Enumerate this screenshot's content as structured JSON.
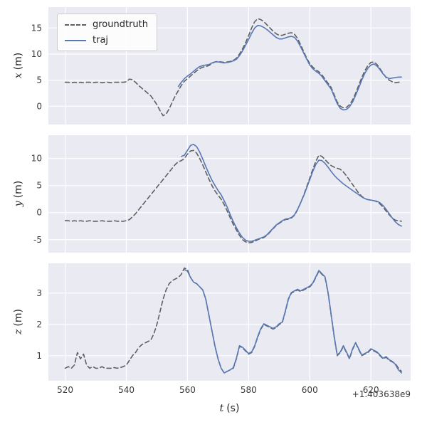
{
  "figure": {
    "bg": "#ffffff",
    "axes_bg": "#eaeaf2",
    "grid_color": "#ffffff",
    "text_color": "#3b3b3b"
  },
  "legend": {
    "position": "upper left",
    "items": [
      {
        "label": "groundtruth",
        "style": "dashed",
        "color": "#5f5f5f"
      },
      {
        "label": "traj",
        "style": "solid",
        "color": "#5878b4"
      }
    ]
  },
  "x_axis": {
    "label_var": "t",
    "label_unit": "(s)",
    "offset": "+1.403638e9",
    "ticks": [
      520,
      540,
      560,
      580,
      600,
      620
    ],
    "lim": [
      514.5,
      633
    ]
  },
  "chart_data": [
    {
      "type": "line",
      "ylabel_var": "x",
      "ylabel_unit": "(m)",
      "yticks": [
        0,
        5,
        10,
        15
      ],
      "ylim": [
        -3.5,
        19.0
      ],
      "grid": true,
      "series": [
        {
          "name": "groundtruth",
          "color": "#5f5f5f",
          "dashed": true,
          "t0": 520,
          "dt": 1,
          "v": [
            4.6,
            4.6,
            4.5,
            4.6,
            4.5,
            4.6,
            4.5,
            4.6,
            4.6,
            4.5,
            4.6,
            4.6,
            4.5,
            4.6,
            4.6,
            4.5,
            4.6,
            4.6,
            4.6,
            4.6,
            4.7,
            5.2,
            5.1,
            4.6,
            4.0,
            3.5,
            3.0,
            2.5,
            2.0,
            1.2,
            0.3,
            -0.8,
            -1.8,
            -1.5,
            -0.5,
            0.8,
            2.0,
            3.0,
            4.0,
            4.8,
            5.3,
            5.8,
            6.3,
            6.8,
            7.2,
            7.5,
            7.6,
            7.8,
            8.2,
            8.5,
            8.6,
            8.5,
            8.4,
            8.5,
            8.6,
            8.8,
            9.2,
            10.0,
            11.0,
            12.2,
            13.5,
            15.0,
            16.2,
            16.8,
            16.6,
            16.2,
            15.6,
            15.0,
            14.4,
            13.9,
            13.6,
            13.6,
            13.8,
            14.0,
            14.1,
            13.8,
            13.0,
            11.8,
            10.5,
            9.2,
            8.2,
            7.5,
            7.0,
            6.6,
            6.0,
            5.2,
            4.4,
            3.6,
            2.2,
            0.8,
            0.0,
            -0.3,
            -0.2,
            0.3,
            1.2,
            2.5,
            4.0,
            5.5,
            6.8,
            7.8,
            8.4,
            8.5,
            8.0,
            7.2,
            6.3,
            5.5,
            5.0,
            4.7,
            4.5,
            4.6,
            4.7
          ]
        },
        {
          "name": "traj",
          "color": "#5878b4",
          "dashed": false,
          "t0": 557,
          "dt": 1,
          "v": [
            3.8,
            4.6,
            5.3,
            5.8,
            6.2,
            6.7,
            7.2,
            7.6,
            7.8,
            7.9,
            8.0,
            8.3,
            8.5,
            8.5,
            8.4,
            8.3,
            8.4,
            8.5,
            8.7,
            9.0,
            9.7,
            10.6,
            11.7,
            12.8,
            14.0,
            15.0,
            15.5,
            15.4,
            15.1,
            14.7,
            14.2,
            13.7,
            13.2,
            12.9,
            12.9,
            13.1,
            13.3,
            13.4,
            13.2,
            12.5,
            11.4,
            10.2,
            9.0,
            7.9,
            7.2,
            6.7,
            6.3,
            5.7,
            4.9,
            4.1,
            3.3,
            1.9,
            0.5,
            -0.4,
            -0.7,
            -0.6,
            -0.1,
            0.8,
            2.1,
            3.5,
            5.0,
            6.3,
            7.3,
            7.9,
            8.1,
            7.7,
            7.0,
            6.2,
            5.6,
            5.3,
            5.4,
            5.5,
            5.6,
            5.6
          ]
        }
      ]
    },
    {
      "type": "line",
      "ylabel_var": "y",
      "ylabel_unit": "(m)",
      "yticks": [
        -5,
        0,
        5,
        10
      ],
      "ylim": [
        -7.4,
        14.3
      ],
      "grid": true,
      "series": [
        {
          "name": "groundtruth",
          "color": "#5f5f5f",
          "dashed": true,
          "t0": 520,
          "dt": 1,
          "v": [
            -1.5,
            -1.5,
            -1.6,
            -1.5,
            -1.6,
            -1.5,
            -1.6,
            -1.6,
            -1.5,
            -1.6,
            -1.6,
            -1.6,
            -1.5,
            -1.6,
            -1.6,
            -1.6,
            -1.5,
            -1.6,
            -1.6,
            -1.6,
            -1.5,
            -1.3,
            -0.8,
            -0.2,
            0.5,
            1.2,
            1.9,
            2.6,
            3.3,
            4.0,
            4.7,
            5.4,
            6.1,
            6.8,
            7.5,
            8.2,
            8.9,
            9.4,
            9.6,
            10.0,
            10.8,
            11.4,
            11.5,
            11.0,
            10.0,
            8.8,
            7.5,
            6.2,
            5.0,
            4.0,
            3.2,
            2.5,
            1.5,
            0.3,
            -1.0,
            -2.2,
            -3.2,
            -4.2,
            -5.0,
            -5.4,
            -5.6,
            -5.5,
            -5.3,
            -5.0,
            -4.8,
            -4.6,
            -4.2,
            -3.6,
            -3.0,
            -2.4,
            -2.0,
            -1.6,
            -1.3,
            -1.2,
            -1.0,
            -0.5,
            0.5,
            1.8,
            3.2,
            4.8,
            6.4,
            8.0,
            9.5,
            10.6,
            10.4,
            9.8,
            9.2,
            8.7,
            8.4,
            8.2,
            8.0,
            7.5,
            6.8,
            6.0,
            5.2,
            4.4,
            3.6,
            3.0,
            2.6,
            2.4,
            2.3,
            2.2,
            2.0,
            1.6,
            1.0,
            0.3,
            -0.4,
            -1.0,
            -1.4,
            -1.5,
            -1.6
          ]
        },
        {
          "name": "traj",
          "color": "#5878b4",
          "dashed": false,
          "t0": 558,
          "dt": 1,
          "v": [
            10.4,
            10.6,
            11.5,
            12.4,
            12.6,
            12.2,
            11.2,
            9.9,
            8.5,
            7.2,
            6.0,
            5.0,
            4.1,
            3.3,
            2.2,
            1.0,
            -0.4,
            -1.7,
            -2.8,
            -3.8,
            -4.6,
            -5.1,
            -5.3,
            -5.3,
            -5.1,
            -4.9,
            -4.7,
            -4.5,
            -4.1,
            -3.5,
            -2.9,
            -2.3,
            -1.9,
            -1.5,
            -1.2,
            -1.1,
            -0.9,
            -0.4,
            0.6,
            1.8,
            3.1,
            4.6,
            6.1,
            7.6,
            8.9,
            9.7,
            9.6,
            9.1,
            8.4,
            7.6,
            6.9,
            6.3,
            5.8,
            5.3,
            4.9,
            4.5,
            4.1,
            3.7,
            3.3,
            2.9,
            2.6,
            2.4,
            2.3,
            2.2,
            2.1,
            1.8,
            1.3,
            0.6,
            -0.2,
            -1.0,
            -1.7,
            -2.2,
            -2.5
          ]
        }
      ]
    },
    {
      "type": "line",
      "ylabel_var": "z",
      "ylabel_unit": "(m)",
      "yticks": [
        1,
        2,
        3
      ],
      "ylim": [
        0.2,
        3.95
      ],
      "grid": true,
      "series": [
        {
          "name": "groundtruth",
          "color": "#5f5f5f",
          "dashed": true,
          "t0": 520,
          "dt": 1,
          "v": [
            0.6,
            0.65,
            0.6,
            0.7,
            1.1,
            0.9,
            1.05,
            0.7,
            0.6,
            0.65,
            0.6,
            0.6,
            0.65,
            0.6,
            0.6,
            0.6,
            0.62,
            0.6,
            0.62,
            0.65,
            0.7,
            0.85,
            1.0,
            1.1,
            1.25,
            1.35,
            1.4,
            1.45,
            1.5,
            1.7,
            2.0,
            2.4,
            2.8,
            3.1,
            3.3,
            3.4,
            3.45,
            3.5,
            3.6,
            3.8,
            3.75,
            3.5,
            3.35,
            3.3,
            3.2,
            3.1,
            2.8,
            2.3,
            1.8,
            1.3,
            0.9,
            0.6,
            0.45,
            0.5,
            0.55,
            0.6,
            0.9,
            1.3,
            1.25,
            1.15,
            1.05,
            1.1,
            1.3,
            1.6,
            1.85,
            2.0,
            1.95,
            1.9,
            1.85,
            1.9,
            2.0,
            2.05,
            2.4,
            2.8,
            3.0,
            3.05,
            3.1,
            3.05,
            3.1,
            3.15,
            3.2,
            3.3,
            3.5,
            3.7,
            3.6,
            3.5,
            3.0,
            2.3,
            1.6,
            1.0,
            1.1,
            1.3,
            1.1,
            0.9,
            1.2,
            1.4,
            1.2,
            1.0,
            1.05,
            1.1,
            1.2,
            1.15,
            1.1,
            1.0,
            0.9,
            0.95,
            0.85,
            0.8,
            0.75,
            0.6,
            0.5
          ]
        },
        {
          "name": "traj",
          "color": "#5878b4",
          "dashed": false,
          "t0": 559,
          "dt": 1,
          "v": [
            3.75,
            3.7,
            3.5,
            3.35,
            3.3,
            3.2,
            3.1,
            2.8,
            2.3,
            1.8,
            1.3,
            0.9,
            0.6,
            0.45,
            0.5,
            0.55,
            0.62,
            0.92,
            1.32,
            1.27,
            1.17,
            1.07,
            1.12,
            1.32,
            1.62,
            1.87,
            2.02,
            1.97,
            1.92,
            1.87,
            1.92,
            2.02,
            2.07,
            2.42,
            2.82,
            3.02,
            3.07,
            3.12,
            3.07,
            3.12,
            3.17,
            3.22,
            3.32,
            3.52,
            3.72,
            3.62,
            3.52,
            3.02,
            2.32,
            1.62,
            1.02,
            1.12,
            1.32,
            1.12,
            0.92,
            1.22,
            1.42,
            1.22,
            1.02,
            1.07,
            1.12,
            1.22,
            1.17,
            1.12,
            1.02,
            0.92,
            0.97,
            0.87,
            0.82,
            0.72,
            0.55,
            0.45
          ]
        }
      ]
    }
  ]
}
